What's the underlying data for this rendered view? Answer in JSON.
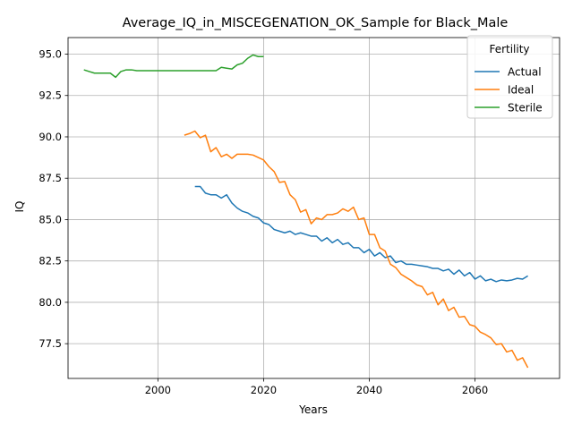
{
  "chart_data": {
    "type": "line",
    "title": "Average_IQ_in_MISCEGENATION_OK_Sample for Black_Male",
    "xlabel": "Years",
    "ylabel": "IQ",
    "xlim": [
      1983,
      2076
    ],
    "ylim": [
      75.4,
      96.0
    ],
    "xticks": [
      2000,
      2020,
      2040,
      2060
    ],
    "yticks": [
      77.5,
      80.0,
      82.5,
      85.0,
      87.5,
      90.0,
      92.5,
      95.0
    ],
    "xtick_labels": [
      "2000",
      "2020",
      "2040",
      "2060"
    ],
    "ytick_labels": [
      "77.5",
      "80.0",
      "82.5",
      "85.0",
      "87.5",
      "90.0",
      "92.5",
      "95.0"
    ],
    "grid": true,
    "legend": {
      "title": "Fertility",
      "position": "top-right",
      "entries": [
        "Actual",
        "Ideal",
        "Sterile"
      ]
    },
    "series": [
      {
        "name": "Actual",
        "color": "#1f77b4",
        "x": [
          2007,
          2008,
          2009,
          2010,
          2011,
          2012,
          2013,
          2014,
          2015,
          2016,
          2017,
          2018,
          2019,
          2020,
          2021,
          2022,
          2023,
          2024,
          2025,
          2026,
          2027,
          2028,
          2029,
          2030,
          2031,
          2032,
          2033,
          2034,
          2035,
          2036,
          2037,
          2038,
          2039,
          2040,
          2041,
          2042,
          2043,
          2044,
          2045,
          2046,
          2047,
          2048,
          2049,
          2050,
          2051,
          2052,
          2053,
          2054,
          2055,
          2056,
          2057,
          2058,
          2059,
          2060,
          2061,
          2062,
          2063,
          2064,
          2065,
          2066,
          2067,
          2068,
          2069,
          2070
        ],
        "y": [
          87.0,
          87.0,
          86.6,
          86.5,
          86.5,
          86.3,
          86.5,
          86.0,
          85.7,
          85.5,
          85.4,
          85.2,
          85.1,
          84.8,
          84.7,
          84.4,
          84.3,
          84.2,
          84.3,
          84.1,
          84.2,
          84.1,
          84.0,
          84.0,
          83.7,
          83.9,
          83.6,
          83.8,
          83.5,
          83.6,
          83.3,
          83.3,
          83.0,
          83.2,
          82.8,
          83.0,
          82.7,
          82.8,
          82.4,
          82.5,
          82.3,
          82.3,
          82.25,
          82.2,
          82.15,
          82.05,
          82.05,
          81.9,
          82.0,
          81.7,
          81.95,
          81.6,
          81.8,
          81.4,
          81.6,
          81.3,
          81.4,
          81.25,
          81.35,
          81.3,
          81.35,
          81.45,
          81.4,
          81.6
        ]
      },
      {
        "name": "Ideal",
        "color": "#ff7f0e",
        "x": [
          2005,
          2006,
          2007,
          2008,
          2009,
          2010,
          2011,
          2012,
          2013,
          2014,
          2015,
          2016,
          2017,
          2018,
          2019,
          2020,
          2021,
          2022,
          2023,
          2024,
          2025,
          2026,
          2027,
          2028,
          2029,
          2030,
          2031,
          2032,
          2033,
          2034,
          2035,
          2036,
          2037,
          2038,
          2039,
          2040,
          2041,
          2042,
          2043,
          2044,
          2045,
          2046,
          2047,
          2048,
          2049,
          2050,
          2051,
          2052,
          2053,
          2054,
          2055,
          2056,
          2057,
          2058,
          2059,
          2060,
          2061,
          2062,
          2063,
          2064,
          2065,
          2066,
          2067,
          2068,
          2069,
          2070
        ],
        "y": [
          90.1,
          90.2,
          90.35,
          89.95,
          90.1,
          89.1,
          89.35,
          88.8,
          88.95,
          88.7,
          88.95,
          88.95,
          88.95,
          88.9,
          88.75,
          88.6,
          88.2,
          87.9,
          87.25,
          87.3,
          86.5,
          86.2,
          85.45,
          85.6,
          84.75,
          85.1,
          85.0,
          85.3,
          85.3,
          85.4,
          85.65,
          85.5,
          85.75,
          85.0,
          85.1,
          84.1,
          84.1,
          83.3,
          83.1,
          82.3,
          82.1,
          81.7,
          81.5,
          81.3,
          81.05,
          80.95,
          80.45,
          80.6,
          79.85,
          80.2,
          79.5,
          79.7,
          79.1,
          79.15,
          78.65,
          78.55,
          78.2,
          78.05,
          77.85,
          77.45,
          77.5,
          77.0,
          77.1,
          76.5,
          76.65,
          76.05
        ]
      },
      {
        "name": "Sterile",
        "color": "#2ca02c",
        "x": [
          1986,
          1987,
          1988,
          1989,
          1990,
          1991,
          1992,
          1993,
          1994,
          1995,
          1996,
          1997,
          1998,
          1999,
          2000,
          2001,
          2002,
          2003,
          2004,
          2005,
          2006,
          2007,
          2008,
          2009,
          2010,
          2011,
          2012,
          2013,
          2014,
          2015,
          2016,
          2017,
          2018,
          2019,
          2020
        ],
        "y": [
          94.05,
          93.95,
          93.85,
          93.85,
          93.85,
          93.85,
          93.6,
          93.95,
          94.05,
          94.05,
          94.0,
          94.0,
          94.0,
          94.0,
          94.0,
          94.0,
          94.0,
          94.0,
          94.0,
          94.0,
          94.0,
          94.0,
          94.0,
          94.0,
          94.0,
          94.0,
          94.2,
          94.15,
          94.1,
          94.35,
          94.45,
          94.75,
          94.95,
          94.85,
          94.85
        ]
      }
    ]
  }
}
